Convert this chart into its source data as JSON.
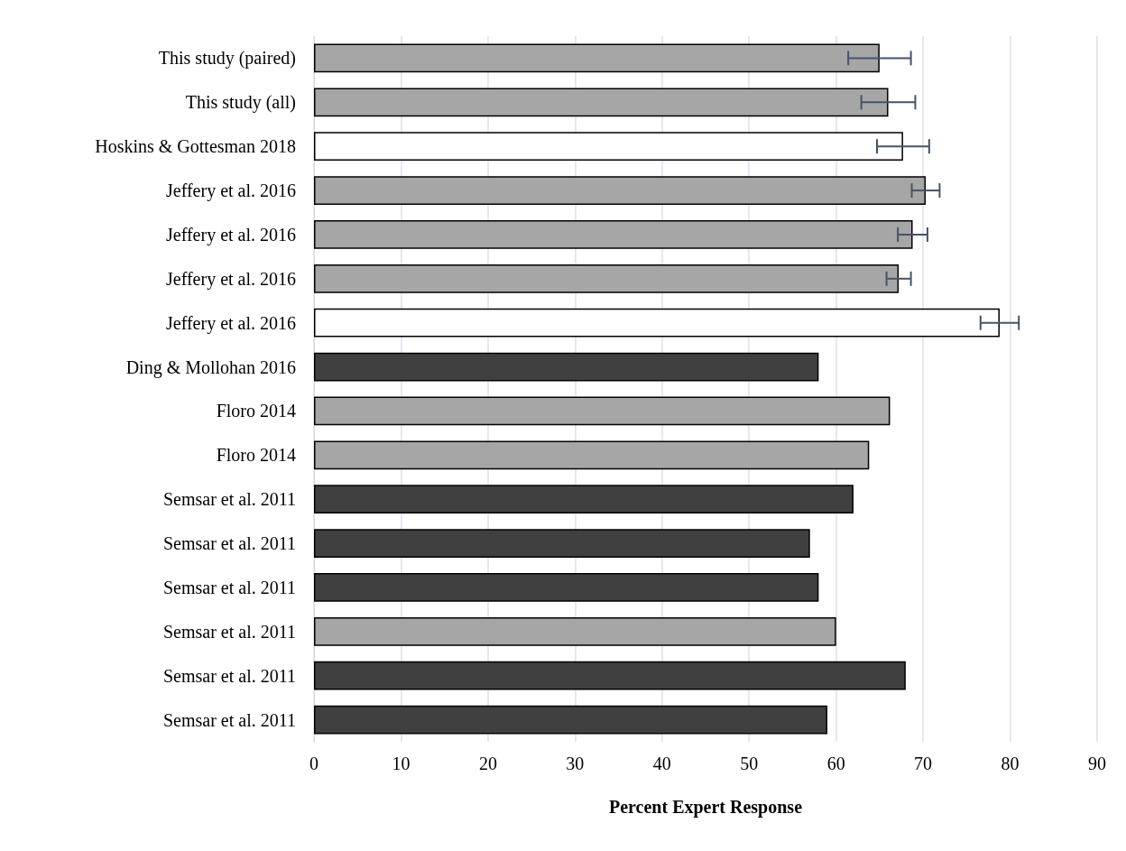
{
  "chart_data": {
    "type": "bar",
    "orientation": "horizontal",
    "xlabel": "Percent Expert Response",
    "categories": [
      "This study (paired)",
      "This study (all)",
      "Hoskins & Gottesman 2018",
      "Jeffery et al. 2016",
      "Jeffery et al. 2016",
      "Jeffery et al. 2016",
      "Jeffery et al. 2016",
      "Ding & Mollohan 2016",
      "Floro 2014",
      "Floro 2014",
      "Semsar et al. 2011",
      "Semsar et al. 2011",
      "Semsar et al. 2011",
      "Semsar et al. 2011",
      "Semsar et al. 2011",
      "Semsar et al. 2011"
    ],
    "values": [
      65.0,
      66.0,
      67.7,
      70.3,
      68.8,
      67.2,
      78.8,
      58.0,
      66.2,
      63.8,
      62.0,
      57.0,
      58.0,
      60.0,
      68.0,
      59.0
    ],
    "errors": [
      3.6,
      3.1,
      3.0,
      1.6,
      1.7,
      1.4,
      2.2,
      null,
      null,
      null,
      null,
      null,
      null,
      null,
      null,
      null
    ],
    "colors": [
      "#a6a6a6",
      "#a6a6a6",
      "#ffffff",
      "#a6a6a6",
      "#a6a6a6",
      "#a6a6a6",
      "#ffffff",
      "#404040",
      "#a6a6a6",
      "#a6a6a6",
      "#404040",
      "#404040",
      "#404040",
      "#a6a6a6",
      "#404040",
      "#404040"
    ],
    "xlim": [
      0,
      90
    ],
    "xticks": [
      0,
      10,
      20,
      30,
      40,
      50,
      60,
      70,
      80,
      90
    ],
    "grid": "x"
  }
}
